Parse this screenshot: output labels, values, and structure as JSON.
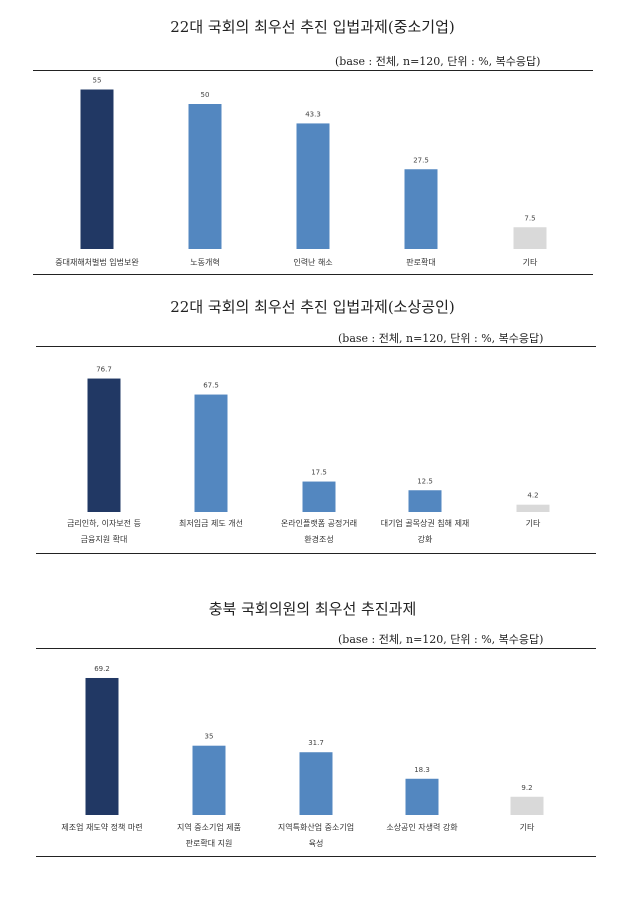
{
  "colors": {
    "dark": "#213864",
    "mid": "#5387C0",
    "light": "#D9D9D9"
  },
  "charts": [
    {
      "title": "22대 국회의 최우선 추진 입법과제(중소기업)",
      "note": "(base : 전체, n=120, 단위 : %, 복수응답)",
      "chart_data": {
        "type": "bar",
        "categories": [
          [
            "중대재해처벌법 입법보완"
          ],
          [
            "노동개혁"
          ],
          [
            "인력난 해소"
          ],
          [
            "판로확대"
          ],
          [
            "기타"
          ]
        ],
        "values": [
          55,
          50,
          43.3,
          27.5,
          7.5
        ],
        "value_labels": [
          "55",
          "50",
          "43.3",
          "27.5",
          "7.5"
        ],
        "bar_colors": [
          "dark",
          "mid",
          "mid",
          "mid",
          "light"
        ]
      }
    },
    {
      "title": "22대 국회의 최우선 추진 입법과제(소상공인)",
      "note": "(base : 전체, n=120, 단위 : %, 복수응답)",
      "chart_data": {
        "type": "bar",
        "categories": [
          [
            "금리인하, 이자보전 등",
            "금융지원 확대"
          ],
          [
            "최저임금 제도 개선"
          ],
          [
            "온라인플랫폼 공정거래",
            "환경조성"
          ],
          [
            "대기업 골목상권 침해 제재",
            "강화"
          ],
          [
            "기타"
          ]
        ],
        "values": [
          76.7,
          67.5,
          17.5,
          12.5,
          4.2
        ],
        "value_labels": [
          "76.7",
          "67.5",
          "17.5",
          "12.5",
          "4.2"
        ],
        "bar_colors": [
          "dark",
          "mid",
          "mid",
          "mid",
          "light"
        ]
      }
    },
    {
      "title": "충북 국회의원의 최우선 추진과제",
      "note": "(base : 전체, n=120, 단위 : %, 복수응답)",
      "chart_data": {
        "type": "bar",
        "categories": [
          [
            "제조업 재도약 정책 마련"
          ],
          [
            "지역 중소기업 제품",
            "판로확대 지원"
          ],
          [
            "지역특화산업 중소기업",
            "육성"
          ],
          [
            "소상공인 자생력 강화"
          ],
          [
            "기타"
          ]
        ],
        "values": [
          69.2,
          35,
          31.7,
          18.3,
          9.2
        ],
        "value_labels": [
          "69.2",
          "35",
          "31.7",
          "18.3",
          "9.2"
        ],
        "bar_colors": [
          "dark",
          "mid",
          "mid",
          "mid",
          "light"
        ]
      }
    }
  ]
}
